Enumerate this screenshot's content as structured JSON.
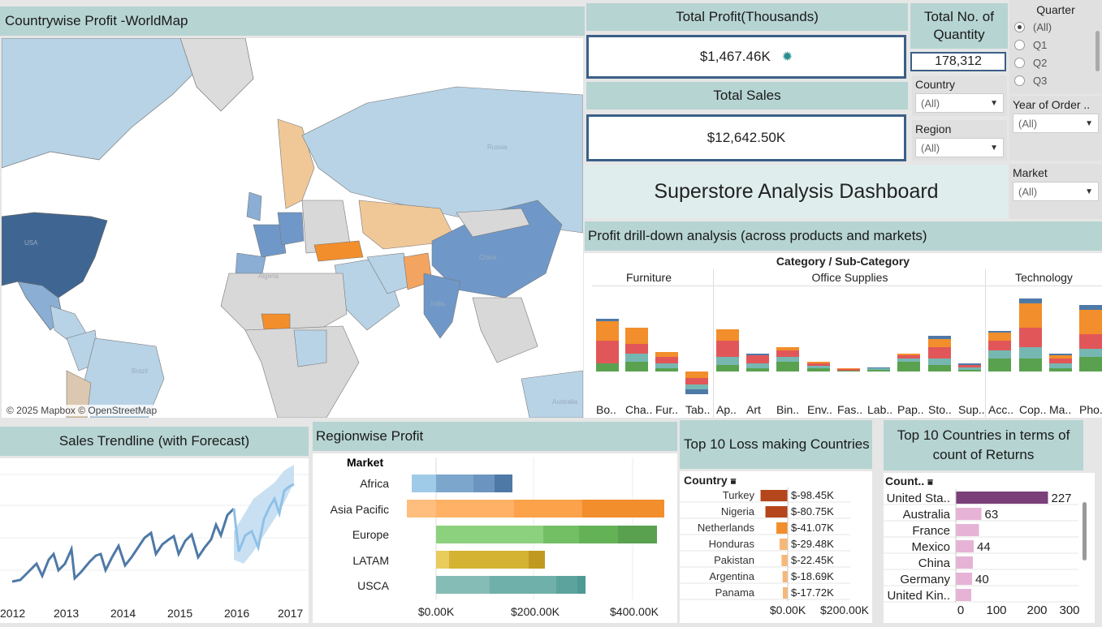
{
  "map": {
    "title": "Countrywise Profit -WorldMap",
    "attribution": "© 2025 Mapbox © OpenStreetMap",
    "labels": [
      "USA",
      "Algeria",
      "China",
      "Russia",
      "Brazil",
      "Australia",
      "India"
    ]
  },
  "kpis": {
    "total_profit_title": "Total Profit(Thousands)",
    "total_profit_value": "$1,467.46K",
    "total_sales_title": "Total Sales",
    "total_sales_value": "$12,642.50K",
    "quantity_title": "Total No. of Quantity",
    "quantity_value": "178,312"
  },
  "filters": {
    "country_label": "Country",
    "country_value": "(All)",
    "region_label": "Region",
    "region_value": "(All)",
    "quarter_label": "Quarter",
    "quarter_options": [
      "(All)",
      "Q1",
      "Q2",
      "Q3"
    ],
    "year_label": "Year of Order ..",
    "year_value": "(All)",
    "market_label": "Market",
    "market_value": "(All)"
  },
  "dashboard_title": "Superstore Analysis Dashboard",
  "drilldown": {
    "title": "Profit drill-down analysis (across products and markets)",
    "header": "Category / Sub-Category",
    "categories": [
      "Furniture",
      "Office Supplies",
      "Technology"
    ],
    "subcategories": [
      "Bo..",
      "Cha..",
      "Fur..",
      "Tab..",
      "Ap..",
      "Art",
      "Bin..",
      "Env..",
      "Fas..",
      "Lab..",
      "Pap..",
      "Sto..",
      "Sup..",
      "Acc..",
      "Cop..",
      "Ma..",
      "Pho.."
    ]
  },
  "trend": {
    "title": "Sales Trendline (with Forecast)",
    "years": [
      "2012",
      "2013",
      "2014",
      "2015",
      "2016",
      "2017"
    ]
  },
  "region_chart": {
    "title": "Regionwise Profit",
    "axis_header": "Market",
    "ticks": [
      "$0.00K",
      "$200.00K",
      "$400.00K"
    ],
    "markets": [
      "Africa",
      "Asia Pacific",
      "Europe",
      "LATAM",
      "USCA"
    ]
  },
  "loss_chart": {
    "title": "Top 10 Loss making Countries",
    "column": "Country",
    "ticks": [
      "$0.00K",
      "$200.00K"
    ],
    "rows": [
      {
        "country": "Turkey",
        "value": "$-98.45K",
        "amount": -98.45
      },
      {
        "country": "Nigeria",
        "value": "$-80.75K",
        "amount": -80.75
      },
      {
        "country": "Netherlands",
        "value": "$-41.07K",
        "amount": -41.07
      },
      {
        "country": "Honduras",
        "value": "$-29.48K",
        "amount": -29.48
      },
      {
        "country": "Pakistan",
        "value": "$-22.45K",
        "amount": -22.45
      },
      {
        "country": "Argentina",
        "value": "$-18.69K",
        "amount": -18.69
      },
      {
        "country": "Panama",
        "value": "$-17.72K",
        "amount": -17.72
      }
    ]
  },
  "returns_chart": {
    "title": "Top 10 Countries in terms of count of Returns",
    "column": "Count..",
    "ticks": [
      "0",
      "100",
      "200",
      "300"
    ],
    "rows": [
      {
        "country": "United Sta..",
        "count": 227,
        "label": "227"
      },
      {
        "country": "Australia",
        "count": 63,
        "label": "63"
      },
      {
        "country": "France",
        "count": 57,
        "label": ""
      },
      {
        "country": "Mexico",
        "count": 44,
        "label": "44"
      },
      {
        "country": "China",
        "count": 42,
        "label": ""
      },
      {
        "country": "Germany",
        "count": 40,
        "label": "40"
      },
      {
        "country": "United Kin..",
        "count": 38,
        "label": ""
      }
    ]
  },
  "colors": {
    "header": "#b6d4d2",
    "kpi_border": "#3b5f87",
    "accent": "#4e79a7"
  }
}
